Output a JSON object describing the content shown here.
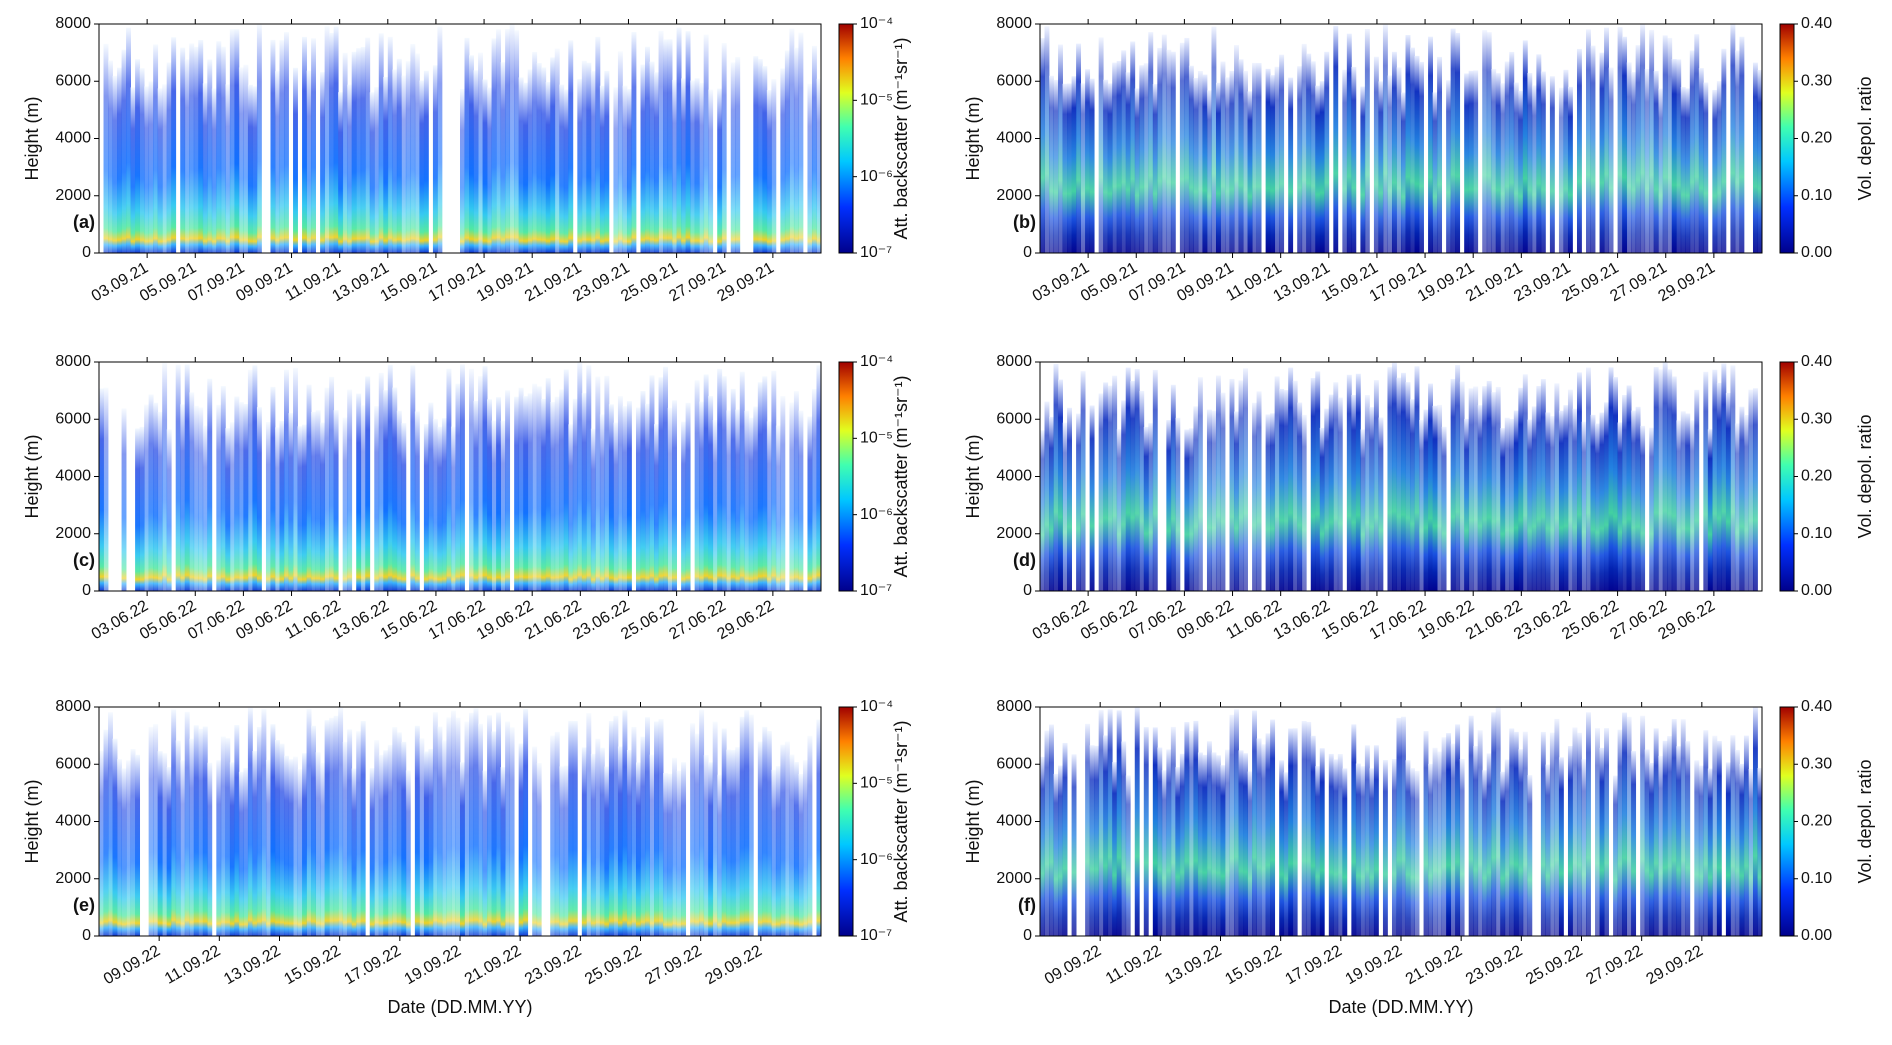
{
  "chart_data": [
    {
      "type": "heatmap",
      "panel_label": "(a)",
      "ylabel": "Height (m)",
      "ylim": [
        0,
        8000
      ],
      "yticks": [
        0,
        2000,
        4000,
        6000,
        8000
      ],
      "categories": [
        "03.09.21",
        "05.09.21",
        "07.09.21",
        "09.09.21",
        "11.09.21",
        "13.09.21",
        "15.09.21",
        "17.09.21",
        "19.09.21",
        "21.09.21",
        "23.09.21",
        "25.09.21",
        "27.09.21",
        "29.09.21"
      ],
      "colorbar_label": "Att. backscatter (m⁻¹sr⁻¹)",
      "color_log": true,
      "clim": [
        1e-07,
        0.0001
      ],
      "cticks": [
        {
          "value": 1e-07,
          "label": "10⁻⁷"
        },
        {
          "value": 1e-06,
          "label": "10⁻⁶"
        },
        {
          "value": 1e-05,
          "label": "10⁻⁵"
        },
        {
          "value": 0.0001,
          "label": "10⁻⁴"
        }
      ]
    },
    {
      "type": "heatmap",
      "panel_label": "(b)",
      "ylabel": "Height (m)",
      "ylim": [
        0,
        8000
      ],
      "yticks": [
        0,
        2000,
        4000,
        6000,
        8000
      ],
      "categories": [
        "03.09.21",
        "05.09.21",
        "07.09.21",
        "09.09.21",
        "11.09.21",
        "13.09.21",
        "15.09.21",
        "17.09.21",
        "19.09.21",
        "21.09.21",
        "23.09.21",
        "25.09.21",
        "27.09.21",
        "29.09.21"
      ],
      "colorbar_label": "Vol. depol. ratio",
      "color_log": false,
      "clim": [
        0,
        0.4
      ],
      "cticks": [
        {
          "value": 0,
          "label": "0.00"
        },
        {
          "value": 0.1,
          "label": "0.10"
        },
        {
          "value": 0.2,
          "label": "0.20"
        },
        {
          "value": 0.3,
          "label": "0.30"
        },
        {
          "value": 0.4,
          "label": "0.40"
        }
      ]
    },
    {
      "type": "heatmap",
      "panel_label": "(c)",
      "ylabel": "Height (m)",
      "ylim": [
        0,
        8000
      ],
      "yticks": [
        0,
        2000,
        4000,
        6000,
        8000
      ],
      "categories": [
        "03.06.22",
        "05.06.22",
        "07.06.22",
        "09.06.22",
        "11.06.22",
        "13.06.22",
        "15.06.22",
        "17.06.22",
        "19.06.22",
        "21.06.22",
        "23.06.22",
        "25.06.22",
        "27.06.22",
        "29.06.22"
      ],
      "colorbar_label": "Att. backscatter (m⁻¹sr⁻¹)",
      "color_log": true,
      "clim": [
        1e-07,
        0.0001
      ],
      "cticks": [
        {
          "value": 1e-07,
          "label": "10⁻⁷"
        },
        {
          "value": 1e-06,
          "label": "10⁻⁶"
        },
        {
          "value": 1e-05,
          "label": "10⁻⁵"
        },
        {
          "value": 0.0001,
          "label": "10⁻⁴"
        }
      ]
    },
    {
      "type": "heatmap",
      "panel_label": "(d)",
      "ylabel": "Height (m)",
      "ylim": [
        0,
        8000
      ],
      "yticks": [
        0,
        2000,
        4000,
        6000,
        8000
      ],
      "categories": [
        "03.06.22",
        "05.06.22",
        "07.06.22",
        "09.06.22",
        "11.06.22",
        "13.06.22",
        "15.06.22",
        "17.06.22",
        "19.06.22",
        "21.06.22",
        "23.06.22",
        "25.06.22",
        "27.06.22",
        "29.06.22"
      ],
      "colorbar_label": "Vol. depol. ratio",
      "color_log": false,
      "clim": [
        0,
        0.4
      ],
      "cticks": [
        {
          "value": 0,
          "label": "0.00"
        },
        {
          "value": 0.1,
          "label": "0.10"
        },
        {
          "value": 0.2,
          "label": "0.20"
        },
        {
          "value": 0.3,
          "label": "0.30"
        },
        {
          "value": 0.4,
          "label": "0.40"
        }
      ]
    },
    {
      "type": "heatmap",
      "panel_label": "(e)",
      "ylabel": "Height (m)",
      "xlabel": "Date (DD.MM.YY)",
      "ylim": [
        0,
        8000
      ],
      "yticks": [
        0,
        2000,
        4000,
        6000,
        8000
      ],
      "categories": [
        "09.09.22",
        "11.09.22",
        "13.09.22",
        "15.09.22",
        "17.09.22",
        "19.09.22",
        "21.09.22",
        "23.09.22",
        "25.09.22",
        "27.09.22",
        "29.09.22"
      ],
      "colorbar_label": "Att. backscatter (m⁻¹sr⁻¹)",
      "color_log": true,
      "clim": [
        1e-07,
        0.0001
      ],
      "cticks": [
        {
          "value": 1e-07,
          "label": "10⁻⁷"
        },
        {
          "value": 1e-06,
          "label": "10⁻⁶"
        },
        {
          "value": 1e-05,
          "label": "10⁻⁵"
        },
        {
          "value": 0.0001,
          "label": "10⁻⁴"
        }
      ]
    },
    {
      "type": "heatmap",
      "panel_label": "(f)",
      "ylabel": "Height (m)",
      "xlabel": "Date (DD.MM.YY)",
      "ylim": [
        0,
        8000
      ],
      "yticks": [
        0,
        2000,
        4000,
        6000,
        8000
      ],
      "categories": [
        "09.09.22",
        "11.09.22",
        "13.09.22",
        "15.09.22",
        "17.09.22",
        "19.09.22",
        "21.09.22",
        "23.09.22",
        "25.09.22",
        "27.09.22",
        "29.09.22"
      ],
      "colorbar_label": "Vol. depol. ratio",
      "color_log": false,
      "clim": [
        0,
        0.4
      ],
      "cticks": [
        {
          "value": 0,
          "label": "0.00"
        },
        {
          "value": 0.1,
          "label": "0.10"
        },
        {
          "value": 0.2,
          "label": "0.20"
        },
        {
          "value": 0.3,
          "label": "0.30"
        },
        {
          "value": 0.4,
          "label": "0.40"
        }
      ]
    }
  ]
}
